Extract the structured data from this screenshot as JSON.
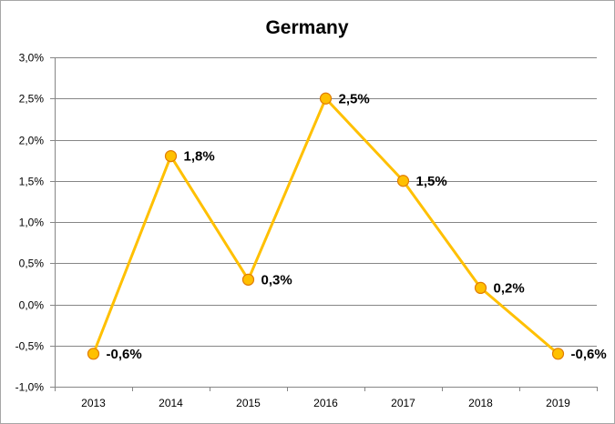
{
  "chart_data": {
    "type": "line",
    "title": "Germany",
    "categories": [
      "2013",
      "2014",
      "2015",
      "2016",
      "2017",
      "2018",
      "2019"
    ],
    "series": [
      {
        "values": [
          -0.6,
          1.8,
          0.3,
          2.5,
          1.5,
          0.2,
          -0.6
        ],
        "labels": [
          "-0,6%",
          "1,8%",
          "0,3%",
          "2,5%",
          "1,5%",
          "0,2%",
          "-0,6%"
        ],
        "line_color": "#ffc000",
        "marker_fill": "#ffc000",
        "marker_edge": "#e07b00"
      }
    ],
    "yticks": [
      {
        "value": 3.0,
        "label": "3,0%"
      },
      {
        "value": 2.5,
        "label": "2,5%"
      },
      {
        "value": 2.0,
        "label": "2,0%"
      },
      {
        "value": 1.5,
        "label": "1,5%"
      },
      {
        "value": 1.0,
        "label": "1,0%"
      },
      {
        "value": 0.5,
        "label": "0,5%"
      },
      {
        "value": 0.0,
        "label": "0,0%"
      },
      {
        "value": -0.5,
        "label": "-0,5%"
      },
      {
        "value": -1.0,
        "label": "-1,0%"
      }
    ],
    "ylim": [
      -1.0,
      3.0
    ],
    "grid": true,
    "gridline_color": "#868686",
    "xlabel": "",
    "ylabel": ""
  }
}
